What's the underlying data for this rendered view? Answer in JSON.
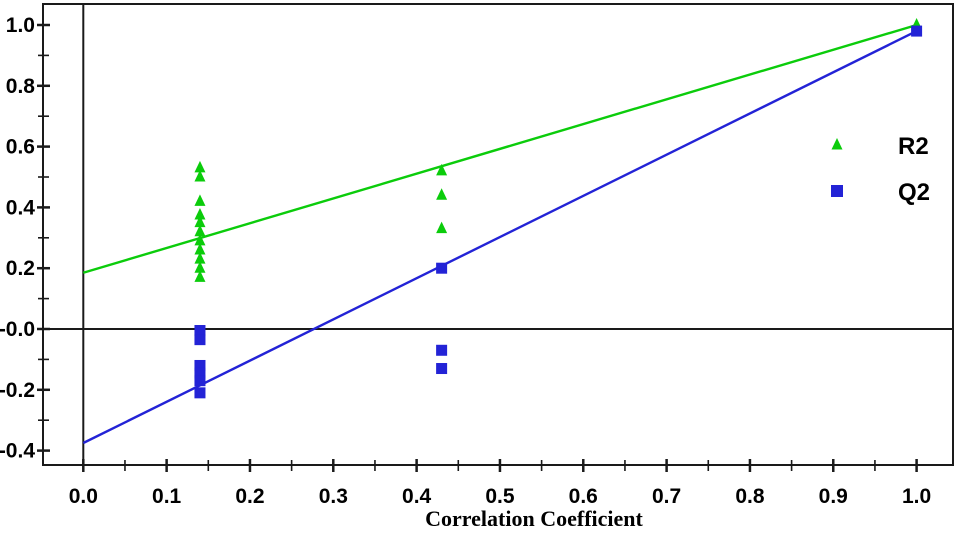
{
  "chart_data": {
    "type": "scatter",
    "title": "",
    "xlabel": "Correlation Coefficient",
    "ylabel": "",
    "xlim": [
      -0.049,
      1.044
    ],
    "ylim": [
      -0.447,
      1.066
    ],
    "grid": false,
    "zero_line_x": 0.0,
    "zero_line_y": 0.0,
    "x_ticks_major": [
      0.0,
      0.1,
      0.2,
      0.3,
      0.4,
      0.5,
      0.6,
      0.7,
      0.8,
      0.9,
      1.0
    ],
    "x_tick_labels": [
      "0.0",
      "0.1",
      "0.2",
      "0.3",
      "0.4",
      "0.5",
      "0.6",
      "0.7",
      "0.8",
      "0.9",
      "1.0"
    ],
    "x_ticks_minor": [
      0.05,
      0.15,
      0.25,
      0.35,
      0.45,
      0.55,
      0.65,
      0.75,
      0.85,
      0.95
    ],
    "y_ticks_major": [
      1.0,
      0.8,
      0.6,
      0.4,
      0.2,
      0.0,
      -0.2,
      -0.4
    ],
    "y_tick_labels": [
      "1.0",
      "0.8",
      "0.6",
      "0.4",
      "0.2",
      "-0.0",
      "-0.2",
      "-0.4"
    ],
    "y_ticks_minor": [
      0.9,
      0.7,
      0.5,
      0.3,
      0.1,
      -0.1,
      -0.3
    ],
    "series": [
      {
        "name": "R2",
        "marker": "triangle",
        "color": "#0bcc0b",
        "points": [
          [
            0.14,
            0.53
          ],
          [
            0.14,
            0.5
          ],
          [
            0.14,
            0.42
          ],
          [
            0.14,
            0.375
          ],
          [
            0.14,
            0.35
          ],
          [
            0.14,
            0.32
          ],
          [
            0.14,
            0.29
          ],
          [
            0.14,
            0.26
          ],
          [
            0.14,
            0.23
          ],
          [
            0.14,
            0.2
          ],
          [
            0.14,
            0.17
          ],
          [
            0.43,
            0.52
          ],
          [
            0.43,
            0.44
          ],
          [
            0.43,
            0.33
          ],
          [
            1.0,
            1.0
          ]
        ],
        "trend_line": {
          "x1": 0.0,
          "y1": 0.185,
          "x2": 1.0,
          "y2": 1.0
        }
      },
      {
        "name": "Q2",
        "marker": "square",
        "color": "#2323d6",
        "points": [
          [
            0.14,
            -0.005
          ],
          [
            0.14,
            -0.035
          ],
          [
            0.14,
            -0.12
          ],
          [
            0.14,
            -0.145
          ],
          [
            0.14,
            -0.17
          ],
          [
            0.14,
            -0.21
          ],
          [
            0.43,
            0.2
          ],
          [
            0.43,
            -0.07
          ],
          [
            0.43,
            -0.13
          ],
          [
            1.0,
            0.98
          ]
        ],
        "trend_line": {
          "x1": 0.0,
          "y1": -0.375,
          "x2": 1.0,
          "y2": 0.98
        }
      }
    ],
    "legend": {
      "position": "right",
      "items": [
        {
          "label": "R2",
          "marker": "triangle",
          "color": "#0bcc0b"
        },
        {
          "label": "Q2",
          "marker": "square",
          "color": "#2323d6"
        }
      ]
    },
    "colors": {
      "axis": "#1a1a1a",
      "text": "#000000",
      "background": "#ffffff"
    }
  }
}
